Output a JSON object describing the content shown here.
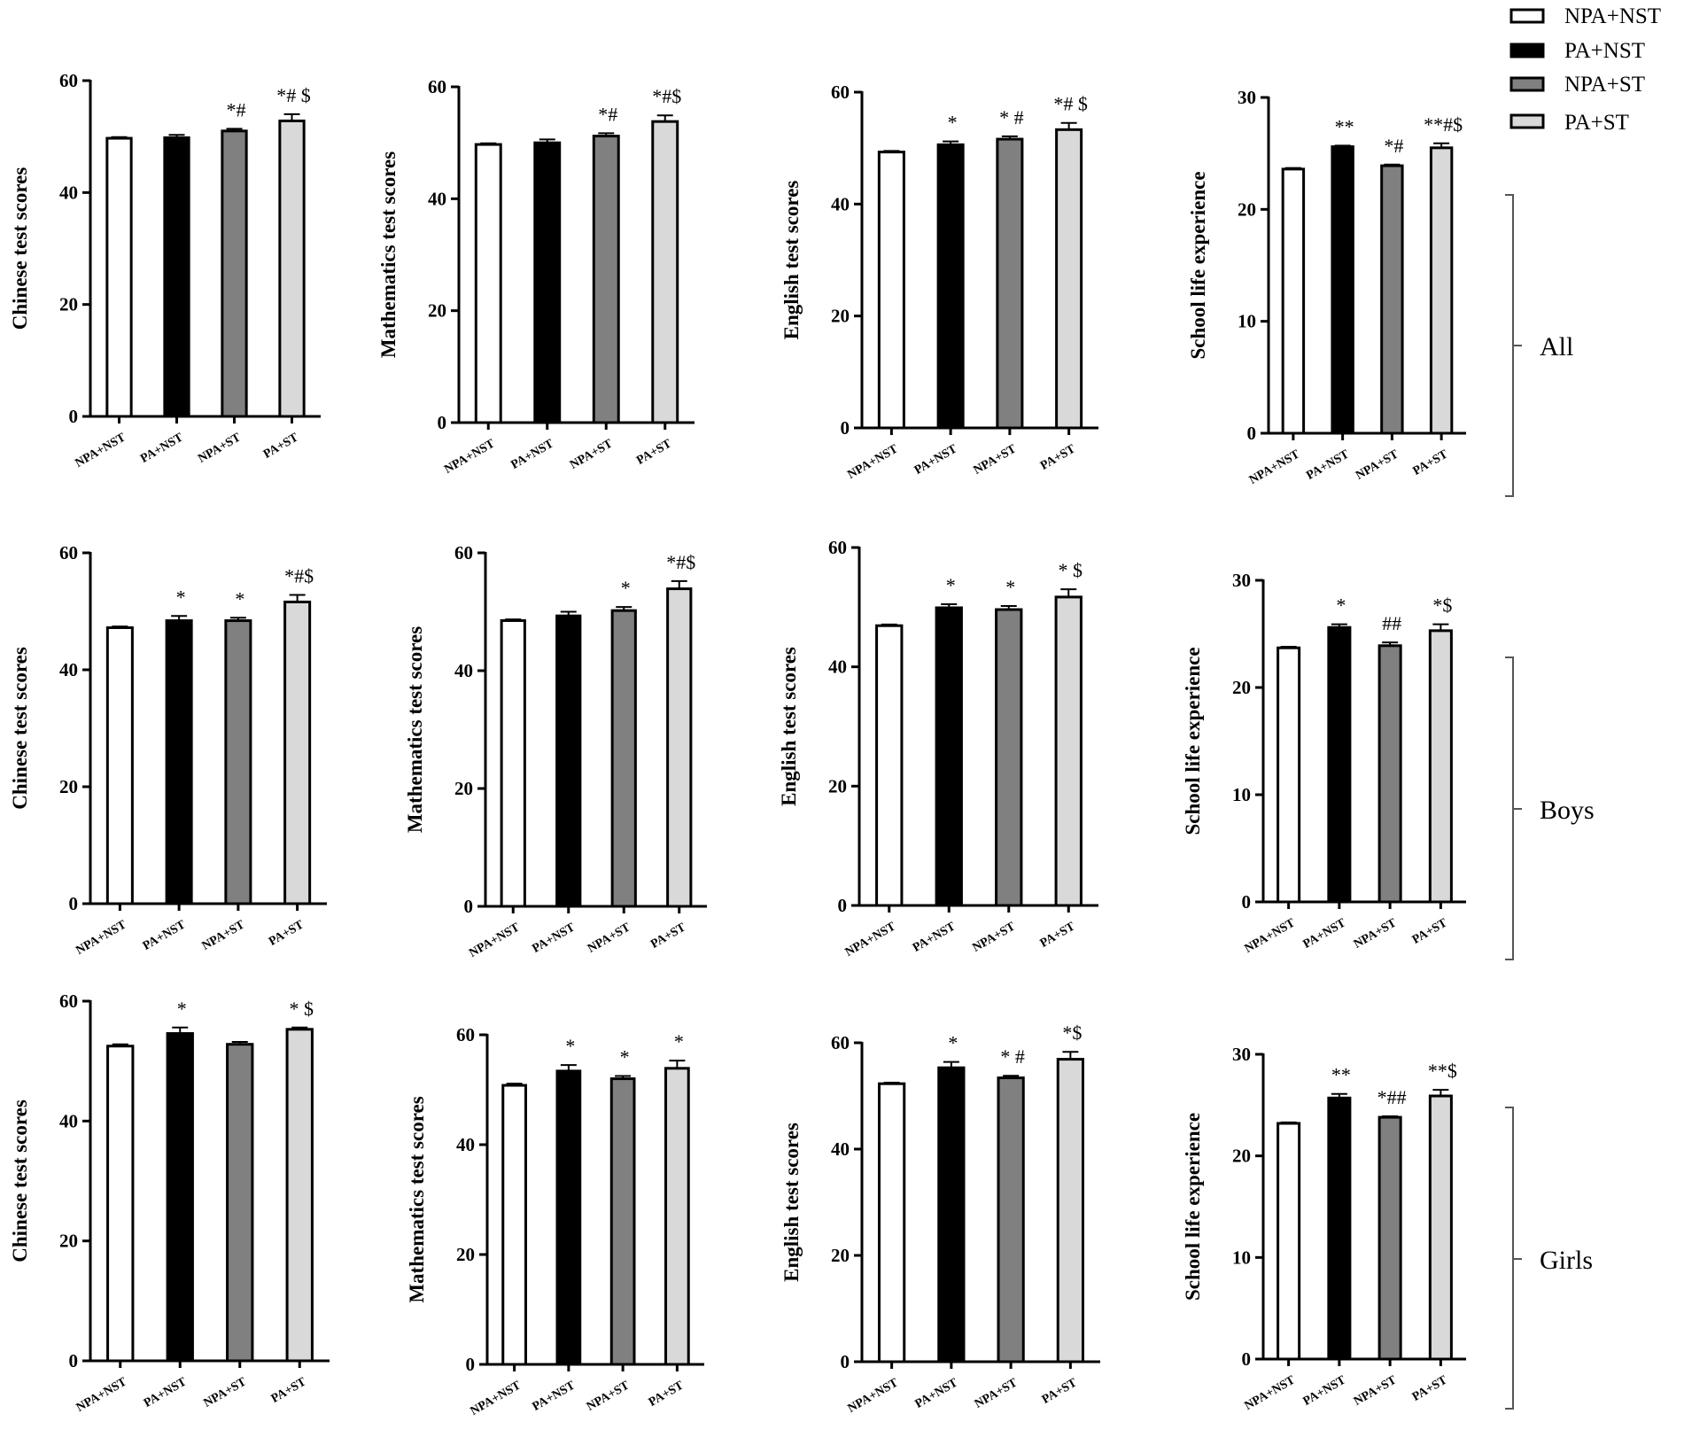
{
  "legend": {
    "entries": [
      "NPA+NST",
      "PA+NST",
      "NPA+ST",
      "PA+ST"
    ],
    "colors": [
      "#ffffff",
      "#000000",
      "#808080",
      "#d9d9d9"
    ]
  },
  "groups": [
    "All",
    "Boys",
    "Girls"
  ],
  "chart_data": [
    {
      "type": "bar",
      "group": "All",
      "ylabel": "Chinese test scores",
      "ylim": [
        0,
        60
      ],
      "yticks": [
        0,
        20,
        40,
        60
      ],
      "categories": [
        "NPA+NST",
        "PA+NST",
        "NPA+ST",
        "PA+ST"
      ],
      "values": [
        49.7,
        49.8,
        51.0,
        52.8
      ],
      "errors": [
        0.2,
        0.5,
        0.4,
        1.2
      ],
      "annotations": [
        "",
        "",
        "*#",
        "*# $"
      ]
    },
    {
      "type": "bar",
      "group": "All",
      "ylabel": "Mathematics test scores",
      "ylim": [
        0,
        60
      ],
      "yticks": [
        0,
        20,
        40,
        60
      ],
      "categories": [
        "NPA+NST",
        "PA+NST",
        "NPA+ST",
        "PA+ST"
      ],
      "values": [
        49.7,
        50.0,
        51.2,
        53.8
      ],
      "errors": [
        0.2,
        0.6,
        0.5,
        1.1
      ],
      "annotations": [
        "",
        "",
        "*#",
        "*#$"
      ]
    },
    {
      "type": "bar",
      "group": "All",
      "ylabel": "English test scores",
      "ylim": [
        0,
        60
      ],
      "yticks": [
        0,
        20,
        40,
        60
      ],
      "categories": [
        "NPA+NST",
        "PA+NST",
        "NPA+ST",
        "PA+ST"
      ],
      "values": [
        49.3,
        50.6,
        51.6,
        53.3
      ],
      "errors": [
        0.2,
        0.6,
        0.5,
        1.2
      ],
      "annotations": [
        "",
        "*",
        "* #",
        "*# $"
      ]
    },
    {
      "type": "bar",
      "group": "All",
      "ylabel": "School life experience",
      "ylim": [
        0,
        30
      ],
      "yticks": [
        0,
        10,
        20,
        30
      ],
      "categories": [
        "NPA+NST",
        "PA+NST",
        "NPA+ST",
        "PA+ST"
      ],
      "values": [
        23.6,
        25.6,
        23.9,
        25.5
      ],
      "errors": [
        0.1,
        0.1,
        0.1,
        0.4
      ],
      "annotations": [
        "",
        "**",
        "*#",
        "**#$"
      ]
    },
    {
      "type": "bar",
      "group": "Boys",
      "ylabel": "Chinese test scores",
      "ylim": [
        0,
        60
      ],
      "yticks": [
        0,
        20,
        40,
        60
      ],
      "categories": [
        "NPA+NST",
        "PA+NST",
        "NPA+ST",
        "PA+ST"
      ],
      "values": [
        47.2,
        48.4,
        48.4,
        51.6
      ],
      "errors": [
        0.2,
        0.8,
        0.5,
        1.2
      ],
      "annotations": [
        "",
        "*",
        "*",
        "*#$"
      ]
    },
    {
      "type": "bar",
      "group": "Boys",
      "ylabel": "Mathematics test scores",
      "ylim": [
        0,
        60
      ],
      "yticks": [
        0,
        20,
        40,
        60
      ],
      "categories": [
        "NPA+NST",
        "PA+NST",
        "NPA+ST",
        "PA+ST"
      ],
      "values": [
        48.5,
        49.3,
        50.2,
        53.9
      ],
      "errors": [
        0.2,
        0.7,
        0.6,
        1.3
      ],
      "annotations": [
        "",
        "",
        "*",
        "*#$"
      ]
    },
    {
      "type": "bar",
      "group": "Boys",
      "ylabel": "English test scores",
      "ylim": [
        0,
        60
      ],
      "yticks": [
        0,
        20,
        40,
        60
      ],
      "categories": [
        "NPA+NST",
        "PA+NST",
        "NPA+ST",
        "PA+ST"
      ],
      "values": [
        46.9,
        49.9,
        49.6,
        51.7
      ],
      "errors": [
        0.2,
        0.6,
        0.6,
        1.3
      ],
      "annotations": [
        "",
        "*",
        "*",
        "* $"
      ]
    },
    {
      "type": "bar",
      "group": "Boys",
      "ylabel": "School life experience",
      "ylim": [
        0,
        30
      ],
      "yticks": [
        0,
        10,
        20,
        30
      ],
      "categories": [
        "NPA+NST",
        "PA+NST",
        "NPA+ST",
        "PA+ST"
      ],
      "values": [
        23.7,
        25.6,
        23.9,
        25.3
      ],
      "errors": [
        0.1,
        0.3,
        0.3,
        0.6
      ],
      "annotations": [
        "",
        "*",
        "##",
        "*$"
      ]
    },
    {
      "type": "bar",
      "group": "Girls",
      "ylabel": "Chinese test scores",
      "ylim": [
        0,
        60
      ],
      "yticks": [
        0,
        20,
        40,
        60
      ],
      "categories": [
        "NPA+NST",
        "PA+NST",
        "NPA+ST",
        "PA+ST"
      ],
      "values": [
        52.5,
        54.6,
        52.8,
        55.3
      ],
      "errors": [
        0.3,
        1.0,
        0.4,
        0.3
      ],
      "annotations": [
        "",
        "*",
        "",
        "* $"
      ]
    },
    {
      "type": "bar",
      "group": "Girls",
      "ylabel": "Mathematics test scores",
      "ylim": [
        0,
        60
      ],
      "yticks": [
        0,
        20,
        40,
        60
      ],
      "categories": [
        "NPA+NST",
        "PA+NST",
        "NPA+ST",
        "PA+ST"
      ],
      "values": [
        50.8,
        53.4,
        52.0,
        53.9
      ],
      "errors": [
        0.3,
        1.1,
        0.5,
        1.4
      ],
      "annotations": [
        "",
        "*",
        "*",
        "*"
      ]
    },
    {
      "type": "bar",
      "group": "Girls",
      "ylabel": "English test scores",
      "ylim": [
        0,
        60
      ],
      "yticks": [
        0,
        20,
        40,
        60
      ],
      "categories": [
        "NPA+NST",
        "PA+NST",
        "NPA+ST",
        "PA+ST"
      ],
      "values": [
        52.3,
        55.3,
        53.4,
        56.9
      ],
      "errors": [
        0.2,
        1.1,
        0.4,
        1.4
      ],
      "annotations": [
        "",
        "*",
        "* #",
        "*$"
      ]
    },
    {
      "type": "bar",
      "group": "Girls",
      "ylabel": "School life experience",
      "ylim": [
        0,
        30
      ],
      "yticks": [
        0,
        10,
        20,
        30
      ],
      "categories": [
        "NPA+NST",
        "PA+NST",
        "NPA+ST",
        "PA+ST"
      ],
      "values": [
        23.2,
        25.7,
        23.8,
        25.9
      ],
      "errors": [
        0.1,
        0.4,
        0.1,
        0.6
      ],
      "annotations": [
        "",
        "**",
        "*##",
        "**$"
      ]
    }
  ]
}
